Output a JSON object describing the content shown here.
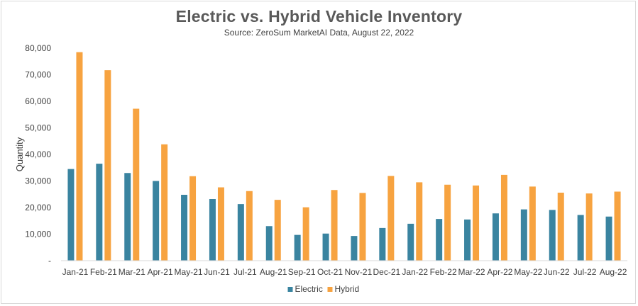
{
  "chart_data": {
    "type": "bar",
    "title": "Electric vs. Hybrid Vehicle Inventory",
    "subtitle": "Source: ZeroSum MarketAI Data, August 22, 2022",
    "xlabel": "",
    "ylabel": "Quantity",
    "ylim": [
      0,
      80000
    ],
    "yticks": [
      0,
      10000,
      20000,
      30000,
      40000,
      50000,
      60000,
      70000,
      80000
    ],
    "ytick_labels": [
      "-",
      "10,000",
      "20,000",
      "30,000",
      "40,000",
      "50,000",
      "60,000",
      "70,000",
      "80,000"
    ],
    "grid": false,
    "legend": "bottom",
    "categories": [
      "Jan-21",
      "Feb-21",
      "Mar-21",
      "Apr-21",
      "May-21",
      "Jun-21",
      "Jul-21",
      "Aug-21",
      "Sep-21",
      "Oct-21",
      "Nov-21",
      "Dec-21",
      "Jan-22",
      "Feb-22",
      "Mar-22",
      "Apr-22",
      "May-22",
      "Jun-22",
      "Jul-22",
      "Aug-22"
    ],
    "series": [
      {
        "name": "Electric",
        "color": "#3a84a0",
        "values": [
          34500,
          36500,
          33000,
          30000,
          24800,
          23200,
          21300,
          13000,
          9700,
          10200,
          9300,
          12300,
          13900,
          15700,
          15500,
          17800,
          19300,
          19100,
          17200,
          16600
        ]
      },
      {
        "name": "Hybrid",
        "color": "#f7a340",
        "values": [
          78500,
          71700,
          57200,
          43800,
          31800,
          27600,
          26200,
          22900,
          20100,
          26600,
          25500,
          31900,
          29500,
          28600,
          28300,
          32300,
          27900,
          25600,
          25300,
          26000
        ]
      }
    ]
  }
}
